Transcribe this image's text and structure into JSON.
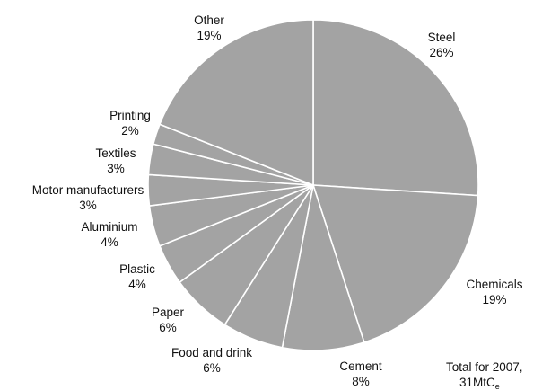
{
  "chart_data": {
    "type": "pie",
    "slices": [
      {
        "label": "Steel",
        "value": 26,
        "value_label": "26%"
      },
      {
        "label": "Chemicals",
        "value": 19,
        "value_label": "19%"
      },
      {
        "label": "Cement",
        "value": 8,
        "value_label": "8%"
      },
      {
        "label": "Food and drink",
        "value": 6,
        "value_label": "6%"
      },
      {
        "label": "Paper",
        "value": 6,
        "value_label": "6%"
      },
      {
        "label": "Plastic",
        "value": 4,
        "value_label": "4%"
      },
      {
        "label": "Aluminium",
        "value": 4,
        "value_label": "4%"
      },
      {
        "label": "Motor manufacturers",
        "value": 3,
        "value_label": "3%"
      },
      {
        "label": "Textiles",
        "value": 3,
        "value_label": "3%"
      },
      {
        "label": "Printing",
        "value": 2,
        "value_label": "2%"
      },
      {
        "label": "Other",
        "value": 19,
        "value_label": "19%"
      }
    ],
    "slice_color": "#a3a3a3",
    "edge_color": "#ffffff",
    "start": "top, clockwise",
    "note": {
      "line1": "Total for 2007,",
      "line2_main": "31MtC",
      "line2_sub": "e"
    }
  }
}
